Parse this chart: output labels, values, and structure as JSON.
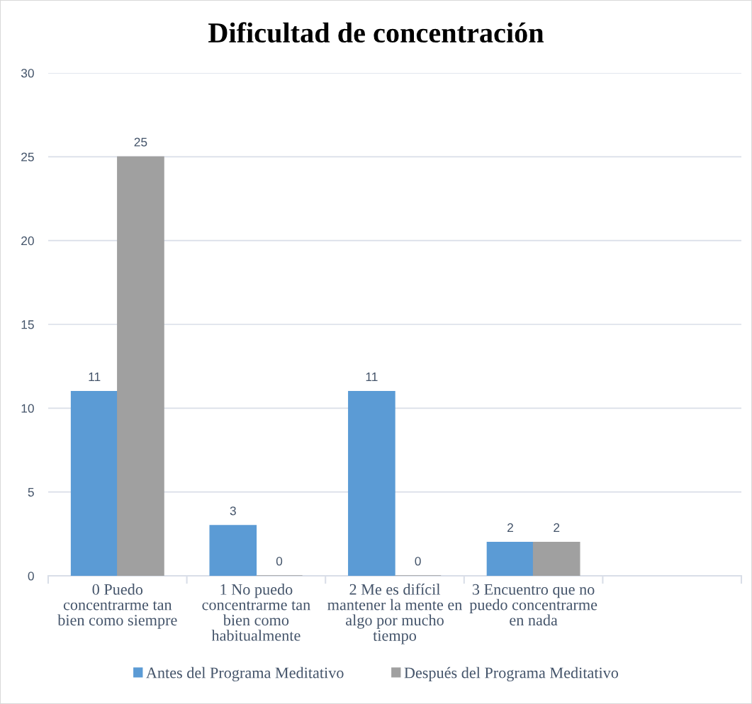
{
  "chart_data": {
    "type": "bar",
    "title": "Dificultad de concentración",
    "categories": [
      "0 Puedo concentrarme tan bien como siempre",
      "1 No puedo concentrarme tan bien como habitualmente",
      "2 Me es difícil mantener la mente en algo por mucho tiempo",
      "3 Encuentro que no puedo concentrarme en nada",
      null
    ],
    "series": [
      {
        "name": "Antes del Programa Meditativo",
        "color": "#5b9bd5",
        "values": [
          11,
          3,
          11,
          2,
          null
        ]
      },
      {
        "name": "Después del Programa Meditativo",
        "color": "#a0a0a0",
        "values": [
          25,
          0,
          0,
          2,
          null
        ]
      }
    ],
    "ylim": [
      0,
      30
    ],
    "yticks": [
      0,
      5,
      10,
      15,
      20,
      25,
      30
    ],
    "grid": "y",
    "legend": "bottom",
    "data_labels": true
  }
}
